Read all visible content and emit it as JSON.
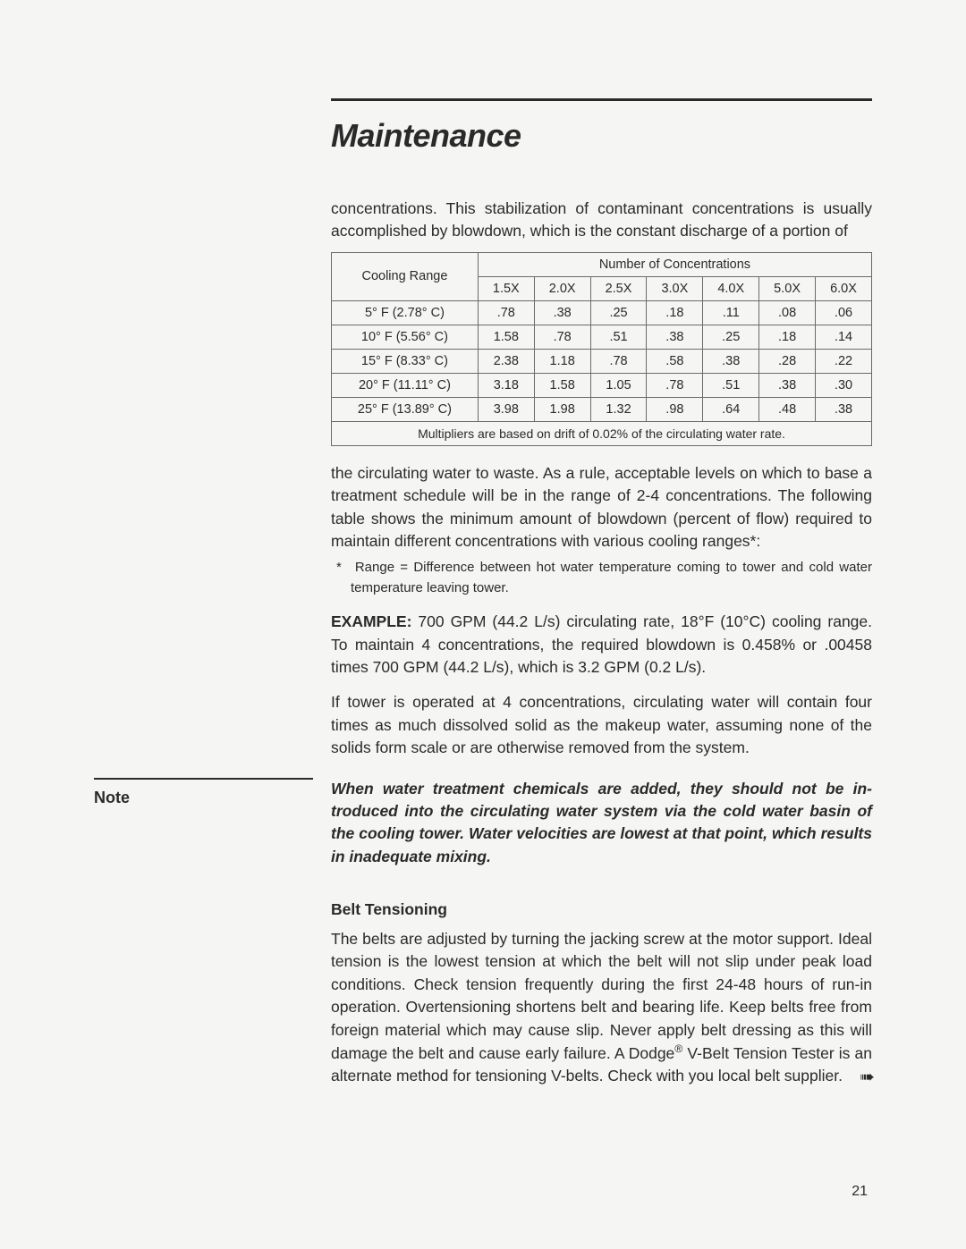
{
  "title": "Maintenance",
  "intro_para": "concentrations. This stabilization of contaminant concentrations is usually accom­plished by blowdown, which is the constant discharge of a portion of",
  "table": {
    "col_group_header": "Number of Concentrations",
    "row_header_label": "Cooling Range",
    "columns": [
      "1.5X",
      "2.0X",
      "2.5X",
      "3.0X",
      "4.0X",
      "5.0X",
      "6.0X"
    ],
    "rows": [
      {
        "label": "5° F (2.78° C)",
        "values": [
          ".78",
          ".38",
          ".25",
          ".18",
          ".11",
          ".08",
          ".06"
        ]
      },
      {
        "label": "10° F (5.56° C)",
        "values": [
          "1.58",
          ".78",
          ".51",
          ".38",
          ".25",
          ".18",
          ".14"
        ]
      },
      {
        "label": "15° F (8.33° C)",
        "values": [
          "2.38",
          "1.18",
          ".78",
          ".58",
          ".38",
          ".28",
          ".22"
        ]
      },
      {
        "label": "20° F (11.11° C)",
        "values": [
          "3.18",
          "1.58",
          "1.05",
          ".78",
          ".51",
          ".38",
          ".30"
        ]
      },
      {
        "label": "25° F (13.89° C)",
        "values": [
          "3.98",
          "1.98",
          "1.32",
          ".98",
          ".64",
          ".48",
          ".38"
        ]
      }
    ],
    "footer": "Multipliers are based on drift of 0.02% of the circulating water rate."
  },
  "para_after_table": "the circulating water to waste. As a rule, acceptable levels on which to base a treatment schedule will be in the range of 2-4 concentrations. The following table shows the minimum amount of blowdown (percent of flow) required to maintain different concentrations with various cooling ranges*:",
  "footnote": "* Range = Difference between hot water temperature coming to tower and cold water temperature leaving tower.",
  "example_label": "EXAMPLE:",
  "example_body": " 700 GPM (44.2 L/s) circulating rate, 18°F (10°C) cooling range. To maintain 4 concentrations, the required blowdown is 0.458% or .00458 times 700 GPM (44.2 L/s), which is 3.2 GPM (0.2 L/s).",
  "para_four_conc": "If tower is operated at 4 concentrations, circulating water will contain four times as much dissolved solid as the makeup water, assuming none of the solids form scale or are otherwise removed from the system.",
  "note_label": "Note",
  "note_body": "When water treatment chemicals are added, they should not be in­troduced into the circulating water system via the cold water basin of the cooling tower. Water velocities are lowest at that point, which results in inadequate mixing.",
  "belt_heading": "Belt Tensioning",
  "belt_para_a": "The belts are adjusted by turning the jacking screw at the motor support. Ideal tension is the lowest tension at which the belt will not slip under peak load conditions. Check tension frequently during the first 24-48 hours of run-in operation. Overtensioning  shortens belt and bearing life. Keep belts free from foreign material which may cause slip. Never apply belt dressing as this will damage the belt and cause early failure. A Dodge",
  "belt_para_b": " V-Belt Tension Tester is an alternate method for tensioning V-belts. Check with you local belt supplier.",
  "continue_glyph": "➠",
  "page_number": "21"
}
